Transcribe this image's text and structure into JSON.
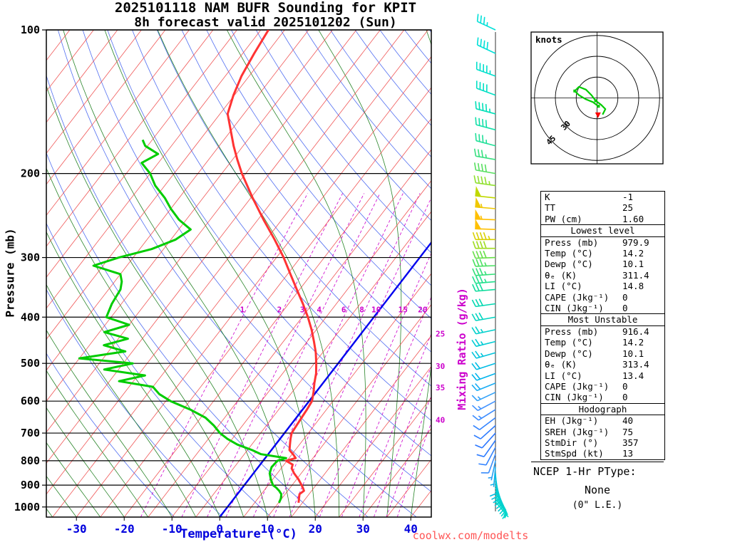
{
  "title": {
    "line1": "2025101118 NAM BUFR Sounding for KPIT",
    "line2": "8h forecast valid 2025101202 (Sun)"
  },
  "axes": {
    "pressure_label": "Pressure (mb)",
    "temp_label": "Temperature (°C)",
    "mixing_label": "Mixing Ratio (g/kg)",
    "pressure_ticks": [
      100,
      200,
      300,
      400,
      500,
      600,
      700,
      800,
      900,
      1000
    ],
    "temp_ticks": [
      -30,
      -20,
      -10,
      0,
      10,
      20,
      30,
      40
    ]
  },
  "watermark": "coolwx.com/modelts",
  "ptype": {
    "header": "NCEP 1-Hr PType:",
    "value": "None",
    "detail": "(0\" L.E.)"
  },
  "indices": {
    "summary": [
      {
        "label": "K",
        "value": "-1"
      },
      {
        "label": "TT",
        "value": "25"
      },
      {
        "label": "PW (cm)",
        "value": "1.60"
      }
    ],
    "sections": [
      {
        "header": "Lowest level",
        "rows": [
          [
            "Press (mb)",
            "979.9"
          ],
          [
            "Temp (°C)",
            "14.2"
          ],
          [
            "Dewp (°C)",
            "10.1"
          ],
          [
            "θₑ (K)",
            "311.4"
          ],
          [
            "LI (°C)",
            "14.8"
          ],
          [
            "CAPE (Jkg⁻¹)",
            "0"
          ],
          [
            "CIN (Jkg⁻¹)",
            "0"
          ]
        ]
      },
      {
        "header": "Most Unstable",
        "rows": [
          [
            "Press (mb)",
            "916.4"
          ],
          [
            "Temp (°C)",
            "14.2"
          ],
          [
            "Dewp (°C)",
            "10.1"
          ],
          [
            "θₑ (K)",
            "313.4"
          ],
          [
            "LI (°C)",
            "13.4"
          ],
          [
            "CAPE (Jkg⁻¹)",
            "0"
          ],
          [
            "CIN (Jkg⁻¹)",
            "0"
          ]
        ]
      },
      {
        "header": "Hodograph",
        "rows": [
          [
            "EH (Jkg⁻¹)",
            "40"
          ],
          [
            "SREH (Jkg⁻¹)",
            "75"
          ],
          [
            "StmDir (°)",
            "357"
          ],
          [
            "StmSpd (kt)",
            "13"
          ]
        ]
      }
    ]
  },
  "colors": {
    "temp_curve": "#ff3333",
    "dewp_curve": "#00cc00",
    "isotherm": "#ee4444",
    "zero_isotherm": "#0000ee",
    "dry_adiabat": "#3355ee",
    "moist_adiabat": "#117711",
    "mixing_line": "#cc00cc",
    "axis_blue": "#0000dd",
    "grid_black": "#000000",
    "storm_marker": "#ff0000",
    "hodo_trace": "#00cc00",
    "watermark_red": "#ff5555"
  },
  "chart_data": {
    "type": "skewt-log-p",
    "station": "KPIT",
    "pressure_range": [
      100,
      1050
    ],
    "isotherm_step": 5,
    "isotherm_range": [
      -120,
      45
    ],
    "dry_adiabat_theta": {
      "min": 260,
      "max": 470,
      "step": 10
    },
    "moist_adiabat_start": {
      "min": -40,
      "max": 40,
      "step": 5
    },
    "mixing_ratio_lines": [
      1,
      2,
      3,
      4,
      6,
      8,
      10,
      15,
      20,
      25,
      30,
      35,
      40
    ],
    "mixing_label_row_mb": 400,
    "temp_profile": [
      [
        979.9,
        14.2
      ],
      [
        960,
        13.6
      ],
      [
        940,
        13.0
      ],
      [
        925,
        13.4
      ],
      [
        910,
        12.6
      ],
      [
        900,
        12.0
      ],
      [
        875,
        10.4
      ],
      [
        850,
        8.5
      ],
      [
        830,
        7.2
      ],
      [
        815,
        6.8
      ],
      [
        800,
        4.8
      ],
      [
        790,
        6.4
      ],
      [
        775,
        5.2
      ],
      [
        760,
        3.8
      ],
      [
        740,
        3.0
      ],
      [
        720,
        2.2
      ],
      [
        700,
        1.5
      ],
      [
        675,
        1.3
      ],
      [
        650,
        1.1
      ],
      [
        625,
        0.9
      ],
      [
        600,
        0.6
      ],
      [
        575,
        -0.5
      ],
      [
        550,
        -1.8
      ],
      [
        525,
        -3.0
      ],
      [
        500,
        -4.6
      ],
      [
        475,
        -6.4
      ],
      [
        450,
        -8.6
      ],
      [
        425,
        -11.0
      ],
      [
        400,
        -13.8
      ],
      [
        375,
        -17.0
      ],
      [
        350,
        -20.6
      ],
      [
        325,
        -24.4
      ],
      [
        300,
        -28.5
      ],
      [
        275,
        -33.3
      ],
      [
        250,
        -38.8
      ],
      [
        225,
        -44.6
      ],
      [
        200,
        -50.8
      ],
      [
        187,
        -54.0
      ],
      [
        175,
        -57.0
      ],
      [
        162,
        -60.2
      ],
      [
        150,
        -63.4
      ],
      [
        137,
        -65.2
      ],
      [
        125,
        -66.6
      ],
      [
        112,
        -67.6
      ],
      [
        100,
        -68.4
      ]
    ],
    "dewp_profile": [
      [
        979.9,
        10.1
      ],
      [
        960,
        9.8
      ],
      [
        940,
        9.2
      ],
      [
        925,
        8.2
      ],
      [
        910,
        7.0
      ],
      [
        900,
        6.0
      ],
      [
        875,
        4.6
      ],
      [
        850,
        3.4
      ],
      [
        825,
        2.8
      ],
      [
        800,
        3.0
      ],
      [
        790,
        4.4
      ],
      [
        775,
        -1.5
      ],
      [
        760,
        -4.0
      ],
      [
        740,
        -8.0
      ],
      [
        720,
        -11.0
      ],
      [
        700,
        -13.5
      ],
      [
        675,
        -16.0
      ],
      [
        650,
        -19.0
      ],
      [
        625,
        -23.5
      ],
      [
        600,
        -29.0
      ],
      [
        580,
        -32.5
      ],
      [
        560,
        -35.0
      ],
      [
        545,
        -43.0
      ],
      [
        530,
        -38.5
      ],
      [
        515,
        -48.0
      ],
      [
        500,
        -43.0
      ],
      [
        488,
        -55.0
      ],
      [
        472,
        -46.5
      ],
      [
        458,
        -52.0
      ],
      [
        444,
        -48.0
      ],
      [
        430,
        -54.0
      ],
      [
        415,
        -50.0
      ],
      [
        400,
        -56.0
      ],
      [
        375,
        -57.0
      ],
      [
        350,
        -57.5
      ],
      [
        337,
        -58.5
      ],
      [
        325,
        -60.0
      ],
      [
        312,
        -67.0
      ],
      [
        300,
        -63.0
      ],
      [
        288,
        -57.5
      ],
      [
        275,
        -54.0
      ],
      [
        262,
        -52.5
      ],
      [
        250,
        -56.5
      ],
      [
        237,
        -60.0
      ],
      [
        225,
        -63.0
      ],
      [
        212,
        -67.0
      ],
      [
        200,
        -70.0
      ],
      [
        190,
        -73.5
      ],
      [
        182,
        -71.5
      ],
      [
        175,
        -75.5
      ],
      [
        170,
        -77.0
      ]
    ],
    "wind_barbs": [
      [
        100,
        35,
        295,
        "#00e0d8"
      ],
      [
        112,
        40,
        295,
        "#00e0d8"
      ],
      [
        125,
        45,
        290,
        "#00e0cc"
      ],
      [
        137,
        40,
        290,
        "#00e0c4"
      ],
      [
        150,
        45,
        285,
        "#00e0b8"
      ],
      [
        162,
        40,
        285,
        "#10e0a8"
      ],
      [
        175,
        35,
        285,
        "#20e098"
      ],
      [
        187,
        35,
        280,
        "#38e080"
      ],
      [
        200,
        40,
        280,
        "#58e060"
      ],
      [
        212,
        45,
        278,
        "#90e030"
      ],
      [
        225,
        50,
        276,
        "#c0d800"
      ],
      [
        237,
        55,
        275,
        "#f0c800"
      ],
      [
        250,
        55,
        272,
        "#ffc000"
      ],
      [
        262,
        50,
        272,
        "#ffc000"
      ],
      [
        275,
        45,
        270,
        "#d8d000"
      ],
      [
        287,
        42,
        270,
        "#a0dc20"
      ],
      [
        300,
        40,
        268,
        "#68e048"
      ],
      [
        312,
        38,
        268,
        "#48e060"
      ],
      [
        325,
        35,
        266,
        "#30e078"
      ],
      [
        337,
        35,
        265,
        "#20e08c"
      ],
      [
        350,
        33,
        265,
        "#10dc9c"
      ],
      [
        375,
        30,
        262,
        "#00d8b0"
      ],
      [
        400,
        30,
        260,
        "#00d4c0"
      ],
      [
        425,
        28,
        258,
        "#00d0cc"
      ],
      [
        450,
        25,
        256,
        "#00ccd4"
      ],
      [
        475,
        25,
        254,
        "#00c4dc"
      ],
      [
        500,
        24,
        252,
        "#00bce4"
      ],
      [
        525,
        22,
        250,
        "#00b4ec"
      ],
      [
        550,
        20,
        248,
        "#18acf4"
      ],
      [
        575,
        18,
        245,
        "#30a0f8"
      ],
      [
        600,
        16,
        242,
        "#4494ff"
      ],
      [
        625,
        15,
        238,
        "#3c8cff"
      ],
      [
        650,
        14,
        233,
        "#3484ff"
      ],
      [
        675,
        12,
        228,
        "#2e7cff"
      ],
      [
        700,
        11,
        222,
        "#2a76ff"
      ],
      [
        725,
        10,
        215,
        "#2e7cff"
      ],
      [
        750,
        10,
        208,
        "#3484ff"
      ],
      [
        775,
        10,
        200,
        "#3a8cfa"
      ],
      [
        800,
        9,
        192,
        "#2aa0f4"
      ],
      [
        825,
        9,
        185,
        "#14b0ec"
      ],
      [
        850,
        10,
        176,
        "#00bce4"
      ],
      [
        862,
        10,
        172,
        "#00c0e0"
      ],
      [
        875,
        11,
        168,
        "#00c4dc"
      ],
      [
        887,
        11,
        164,
        "#00c8d8"
      ],
      [
        900,
        12,
        160,
        "#00ccd4"
      ],
      [
        912,
        12,
        156,
        "#00ccd4"
      ],
      [
        925,
        12,
        152,
        "#00d0d0"
      ],
      [
        937,
        11,
        148,
        "#00d0d0"
      ],
      [
        950,
        10,
        145,
        "#00d4cc"
      ],
      [
        962,
        8,
        142,
        "#00d4cc"
      ],
      [
        975,
        6,
        140,
        "#00d8c8"
      ]
    ],
    "hodograph": {
      "unit_label": "knots",
      "rings_kt": [
        15,
        30,
        45
      ],
      "ring_label_values": [
        30,
        45
      ],
      "trace_kt": [
        [
          1,
          -6
        ],
        [
          -3,
          -3
        ],
        [
          -8,
          -1
        ],
        [
          -13,
          2
        ],
        [
          -16,
          5
        ],
        [
          -13,
          8
        ],
        [
          -8,
          6
        ],
        [
          -4,
          2
        ],
        [
          -1,
          -2
        ],
        [
          3,
          -5
        ],
        [
          6,
          -8
        ],
        [
          4,
          -12
        ]
      ],
      "storm_dir": 357,
      "storm_spd": 13
    }
  }
}
